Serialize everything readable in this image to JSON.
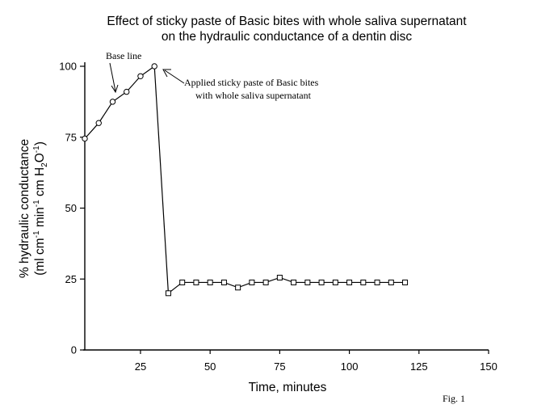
{
  "chart_data": {
    "type": "line",
    "title_line1": "Effect of sticky paste of Basic bites with whole saliva supernatant",
    "title_line2": "on the hydraulic conductance of a dentin disc",
    "xlabel": "Time, minutes",
    "ylabel_line1": "% hydraulic conductance",
    "ylabel_line2": {
      "p1": "(ml cm",
      "s1": "-1",
      "p2": " min",
      "s2": "-1",
      "p3": " cm H",
      "sub": "2",
      "p4": "O",
      "s3": "-1",
      "p5": ")"
    },
    "xlim": [
      5,
      150
    ],
    "ylim": [
      0,
      100
    ],
    "x_ticks": [
      25,
      50,
      75,
      100,
      125,
      150
    ],
    "y_ticks": [
      0,
      25,
      50,
      75,
      100
    ],
    "grid": false,
    "series": [
      {
        "marker": "circle",
        "points": [
          [
            5,
            74.5
          ],
          [
            10,
            80
          ],
          [
            15,
            87.5
          ],
          [
            20,
            91
          ],
          [
            25,
            96.5
          ],
          [
            30,
            100
          ]
        ]
      },
      {
        "marker": "square",
        "points": [
          [
            35,
            20
          ],
          [
            40,
            23.8
          ],
          [
            45,
            23.8
          ],
          [
            50,
            23.8
          ],
          [
            55,
            23.8
          ],
          [
            60,
            22
          ],
          [
            65,
            23.8
          ],
          [
            70,
            23.8
          ],
          [
            75,
            25.5
          ],
          [
            80,
            23.8
          ],
          [
            85,
            23.8
          ],
          [
            90,
            23.8
          ],
          [
            95,
            23.8
          ],
          [
            100,
            23.8
          ],
          [
            105,
            23.8
          ],
          [
            110,
            23.8
          ],
          [
            115,
            23.8
          ],
          [
            120,
            23.8
          ]
        ]
      }
    ],
    "connector": [
      [
        30,
        100
      ],
      [
        35,
        20
      ]
    ],
    "annotations": {
      "baseline": "Base line",
      "applied_line1": "Applied sticky paste of  Basic bites",
      "applied_line2": "with whole saliva supernatant"
    }
  },
  "figure_label": "Fig. 1"
}
